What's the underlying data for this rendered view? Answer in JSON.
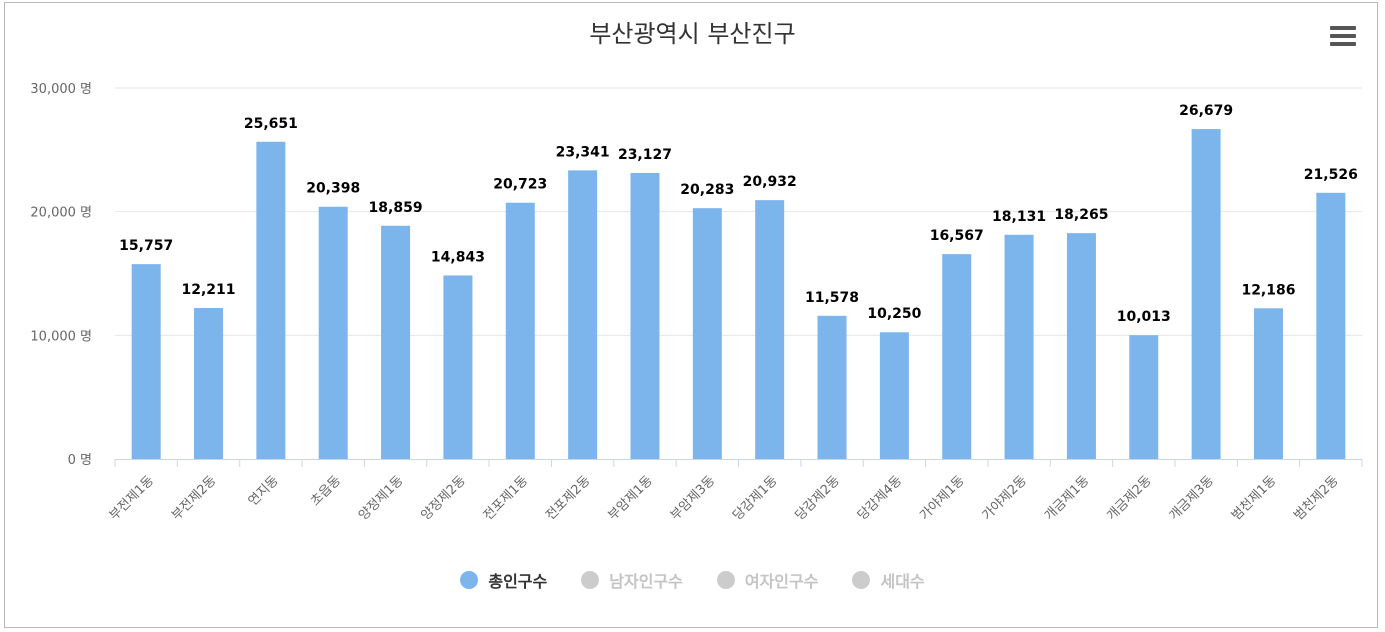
{
  "title": "부산광역시 부산진구",
  "menu_icon": "hamburger-menu-icon",
  "colors": {
    "bar": "#7cb5ec",
    "inactive": "#cccccc",
    "grid": "#e6e6e6",
    "axis": "#ccd6eb"
  },
  "legend": [
    {
      "label": "총인구수",
      "active": true
    },
    {
      "label": "남자인구수",
      "active": false
    },
    {
      "label": "여자인구수",
      "active": false
    },
    {
      "label": "세대수",
      "active": false
    }
  ],
  "chart_data": {
    "type": "bar",
    "title": "부산광역시 부산진구",
    "categories": [
      "부전제1동",
      "부전제2동",
      "연지동",
      "초읍동",
      "양정제1동",
      "양정제2동",
      "전포제1동",
      "전포제2동",
      "부암제1동",
      "부암제3동",
      "당감제1동",
      "당감제2동",
      "당감제4동",
      "가야제1동",
      "가야제2동",
      "개금제1동",
      "개금제2동",
      "개금제3동",
      "범천제1동",
      "범천제2동"
    ],
    "series": [
      {
        "name": "총인구수",
        "values": [
          15757,
          12211,
          25651,
          20398,
          18859,
          14843,
          20723,
          23341,
          23127,
          20283,
          20932,
          11578,
          10250,
          16567,
          18131,
          18265,
          10013,
          26679,
          12186,
          21526
        ],
        "labels": [
          "15,757",
          "12,211",
          "25,651",
          "20,398",
          "18,859",
          "14,843",
          "20,723",
          "23,341",
          "23,127",
          "20,283",
          "20,932",
          "11,578",
          "10,250",
          "16,567",
          "18,131",
          "18,265",
          "10,013",
          "26,679",
          "12,186",
          "21,526"
        ]
      }
    ],
    "yticks": [
      "0 명",
      "10,000 명",
      "20,000 명",
      "30,000 명"
    ],
    "ylim": [
      0,
      30000
    ],
    "grid": true,
    "legend_position": "bottom"
  }
}
